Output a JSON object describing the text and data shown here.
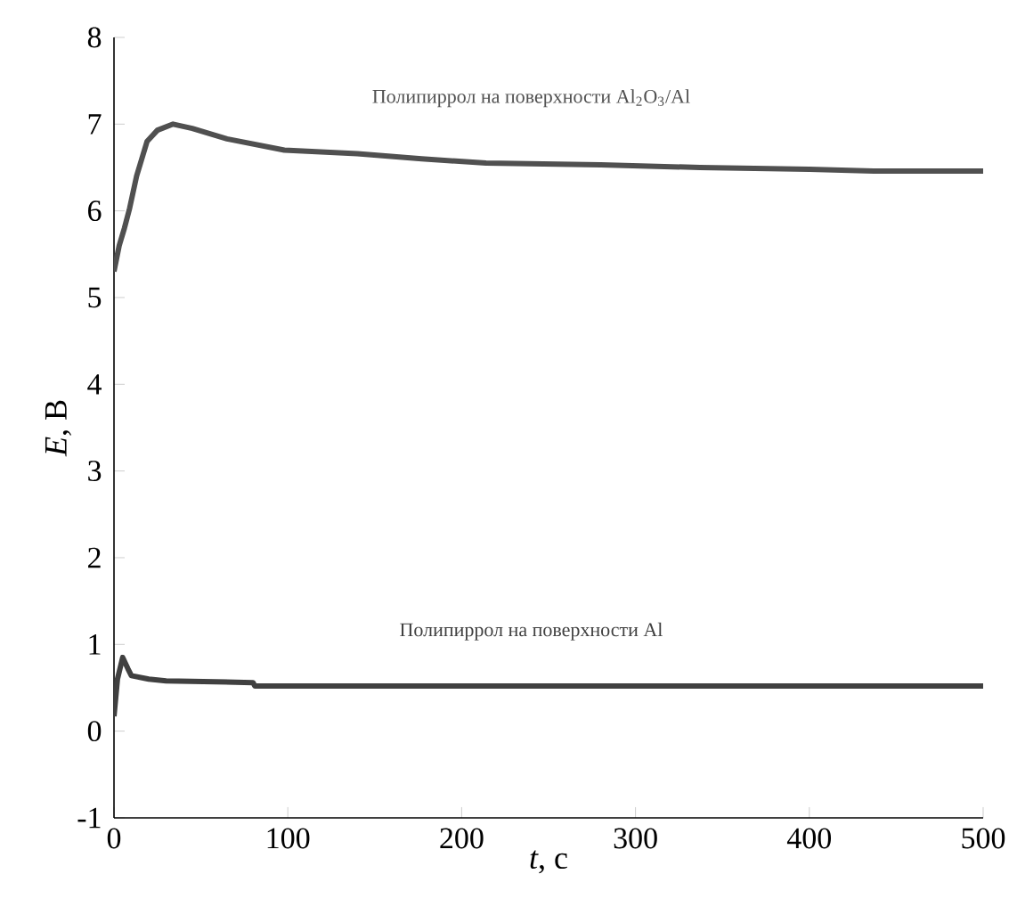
{
  "chart_data": {
    "type": "line",
    "xlabel": "*t*, с",
    "ylabel": "*E*, В",
    "xlim": [
      0,
      500
    ],
    "ylim": [
      -1,
      8
    ],
    "xticks": [
      0,
      100,
      200,
      300,
      400,
      500
    ],
    "yticks": [
      -1,
      0,
      1,
      2,
      3,
      4,
      5,
      6,
      7,
      8
    ],
    "grid": false,
    "marker": "none",
    "line_style": "solid",
    "series": [
      {
        "name": "Полипиррол на поверхности Al$_{2}$O$_{3}$/Al",
        "color": "#505050",
        "x": [
          0,
          3,
          6,
          9,
          13,
          19,
          25,
          34,
          45,
          65,
          98,
          140,
          177,
          214,
          280,
          337,
          400,
          437,
          500
        ],
        "values": [
          5.3,
          5.6,
          5.8,
          6.03,
          6.4,
          6.8,
          6.93,
          7.0,
          6.95,
          6.83,
          6.7,
          6.66,
          6.6,
          6.55,
          6.53,
          6.5,
          6.48,
          6.46,
          6.46
        ]
      },
      {
        "name": "Полипиррол на поверхности Al",
        "color": "#404040",
        "x": [
          0,
          2,
          5,
          8,
          10,
          20,
          30,
          80,
          81,
          200,
          300,
          400,
          500
        ],
        "values": [
          0.17,
          0.6,
          0.85,
          0.72,
          0.64,
          0.6,
          0.58,
          0.56,
          0.52,
          0.52,
          0.52,
          0.52,
          0.52
        ]
      }
    ]
  }
}
